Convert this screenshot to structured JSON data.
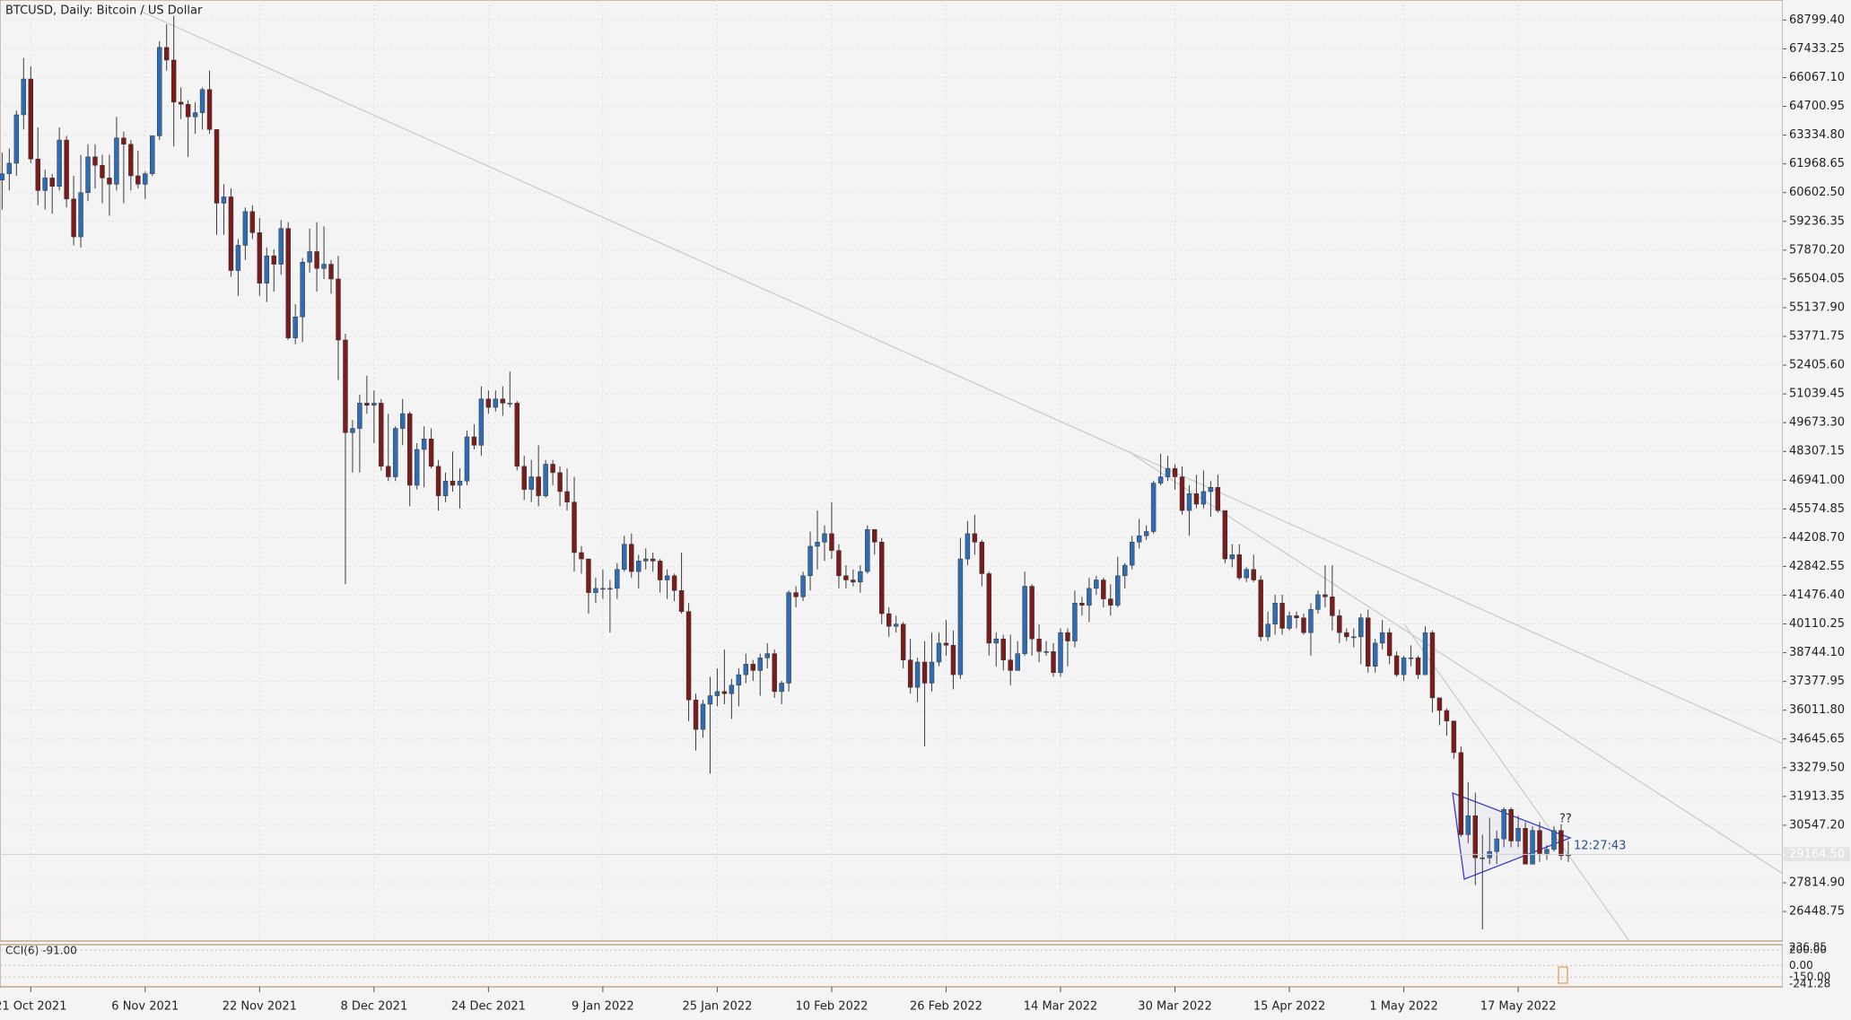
{
  "chart_data": {
    "type": "candlestick",
    "title": "BTCUSD, Daily:  Bitcoin / US Dollar",
    "up_color": "#2e6db4",
    "down_color": "#7a1c1c",
    "wick_color": "#3c3c3c",
    "grid": true,
    "xlim": [
      -0.3,
      249
    ],
    "xticks": [
      {
        "value": 4,
        "label": "21 Oct 2021"
      },
      {
        "value": 20,
        "label": "6 Nov 2021"
      },
      {
        "value": 36,
        "label": "22 Nov 2021"
      },
      {
        "value": 52,
        "label": "8 Dec 2021"
      },
      {
        "value": 68,
        "label": "24 Dec 2021"
      },
      {
        "value": 84,
        "label": "9 Jan 2022"
      },
      {
        "value": 100,
        "label": "25 Jan 2022"
      },
      {
        "value": 116,
        "label": "10 Feb 2022"
      },
      {
        "value": 132,
        "label": "26 Feb 2022"
      },
      {
        "value": 148,
        "label": "14 Mar 2022"
      },
      {
        "value": 164,
        "label": "30 Mar 2022"
      },
      {
        "value": 180,
        "label": "15 Apr 2022"
      },
      {
        "value": 196,
        "label": "1 May 2022"
      },
      {
        "value": 212,
        "label": "17 May 2022"
      }
    ],
    "ylim": [
      25046,
      69753
    ],
    "yticks": [
      {
        "value": 68799.4,
        "label": "68799.40"
      },
      {
        "value": 67433.25,
        "label": "67433.25"
      },
      {
        "value": 66067.1,
        "label": "66067.10"
      },
      {
        "value": 64700.95,
        "label": "64700.95"
      },
      {
        "value": 63334.8,
        "label": "63334.80"
      },
      {
        "value": 61968.65,
        "label": "61968.65"
      },
      {
        "value": 60602.5,
        "label": "60602.50"
      },
      {
        "value": 59236.35,
        "label": "59236.35"
      },
      {
        "value": 57870.2,
        "label": "57870.20"
      },
      {
        "value": 56504.05,
        "label": "56504.05"
      },
      {
        "value": 55137.9,
        "label": "55137.90"
      },
      {
        "value": 53771.75,
        "label": "53771.75"
      },
      {
        "value": 52405.6,
        "label": "52405.60"
      },
      {
        "value": 51039.45,
        "label": "51039.45"
      },
      {
        "value": 49673.3,
        "label": "49673.30"
      },
      {
        "value": 48307.15,
        "label": "48307.15"
      },
      {
        "value": 46941,
        "label": "46941.00"
      },
      {
        "value": 45574.85,
        "label": "45574.85"
      },
      {
        "value": 44208.7,
        "label": "44208.70"
      },
      {
        "value": 42842.55,
        "label": "42842.55"
      },
      {
        "value": 41476.4,
        "label": "41476.40"
      },
      {
        "value": 40110.25,
        "label": "40110.25"
      },
      {
        "value": 38744.1,
        "label": "38744.10"
      },
      {
        "value": 37377.95,
        "label": "37377.95"
      },
      {
        "value": 36011.8,
        "label": "36011.80"
      },
      {
        "value": 34645.65,
        "label": "34645.65"
      },
      {
        "value": 33279.5,
        "label": "33279.50"
      },
      {
        "value": 31913.35,
        "label": "31913.35"
      },
      {
        "value": 30547.2,
        "label": "30547.20"
      },
      {
        "value": 27814.9,
        "label": "27814.90"
      },
      {
        "value": 26448.75,
        "label": "26448.75"
      }
    ],
    "last_price": {
      "value": 29164.5,
      "label": "29164.50"
    },
    "annotations": [
      "??",
      "12:27:43"
    ],
    "open": [
      61200,
      61500,
      62000,
      64300,
      66000,
      62200,
      60700,
      61300,
      60900,
      63100,
      60300,
      58500,
      60600,
      62300,
      61900,
      61300,
      61000,
      63200,
      62900,
      61400,
      61000,
      61500,
      63300,
      67500,
      66900,
      64900,
      64800,
      64200,
      64400,
      65500,
      63600,
      60100,
      60400,
      56900,
      58100,
      59700,
      58700,
      56300,
      57600,
      57200,
      58900,
      53700,
      54700,
      57300,
      57800,
      57000,
      57200,
      56500,
      53600,
      49200,
      49400,
      50600,
      50500,
      50600,
      47600,
      47100,
      49400,
      50100,
      46700,
      48400,
      48900,
      47600,
      46200,
      46900,
      46700,
      46900,
      49000,
      48600,
      50800,
      50400,
      50800,
      50600,
      50600,
      47600,
      46500,
      47100,
      46200,
      47700,
      47300,
      46400,
      45900,
      43500,
      43200,
      41600,
      41800,
      41800,
      41800,
      42700,
      43900,
      42600,
      43100,
      43200,
      43100,
      42200,
      42400,
      41700,
      40700,
      36500,
      35100,
      36300,
      36700,
      36900,
      36800,
      37200,
      37700,
      38200,
      37900,
      38500,
      38700,
      36900,
      37300,
      41600,
      41400,
      42400,
      43800,
      44000,
      44400,
      43600,
      42400,
      42200,
      42100,
      42600,
      44600,
      44000,
      40600,
      40000,
      40100,
      38400,
      37100,
      38300,
      37300,
      38300,
      39200,
      39100,
      37700,
      43200,
      44400,
      44000,
      42500,
      39200,
      39400,
      38400,
      37900,
      38700,
      41900,
      39400,
      38800,
      38800,
      37800,
      39700,
      39300,
      41100,
      41000,
      41800,
      42200,
      41300,
      41000,
      42400,
      42900,
      44000,
      44300,
      44500,
      46800,
      47100,
      47500,
      47100,
      45500,
      46300,
      45800,
      46400,
      46600,
      45500,
      43200,
      43400,
      42300,
      42700,
      42200,
      39500,
      40100,
      41100,
      39900,
      40500,
      40400,
      39700,
      40800,
      41500,
      41400,
      40500,
      39700,
      39500,
      39500,
      40400,
      38100,
      39200,
      39700,
      38600,
      37700,
      38500,
      38500,
      37700,
      39700,
      36600,
      36000,
      35500,
      34000,
      30100,
      31000,
      29000,
      29000,
      29300,
      29900,
      31300,
      29800,
      30400,
      28700,
      30300,
      29200,
      29400,
      30300,
      29100
    ],
    "high": [
      62500,
      62700,
      64500,
      67000,
      66600,
      63700,
      61700,
      61500,
      63700,
      63300,
      61400,
      62400,
      62900,
      62900,
      62400,
      62400,
      64200,
      63500,
      63100,
      62600,
      61600,
      63300,
      67800,
      68600,
      69000,
      65600,
      65000,
      64900,
      65600,
      66400,
      63600,
      61000,
      60800,
      58400,
      59900,
      60000,
      59400,
      58000,
      57900,
      59300,
      59200,
      55300,
      57500,
      58900,
      59200,
      59000,
      57400,
      57600,
      53900,
      49800,
      51000,
      51900,
      51200,
      50800,
      50100,
      49500,
      50800,
      50200,
      48700,
      49500,
      49400,
      47900,
      47300,
      48300,
      47500,
      49300,
      49600,
      51400,
      51200,
      51200,
      51400,
      52100,
      50700,
      48100,
      47900,
      48600,
      47900,
      47900,
      47600,
      47500,
      47100,
      43800,
      43200,
      42300,
      42700,
      42200,
      43000,
      44300,
      44400,
      43400,
      43700,
      43500,
      43200,
      42700,
      42500,
      43500,
      41100,
      36800,
      36500,
      37600,
      38000,
      38900,
      37500,
      38000,
      38700,
      38400,
      38700,
      39200,
      38900,
      37400,
      41700,
      41900,
      42600,
      44500,
      45500,
      44800,
      45900,
      43900,
      42900,
      42700,
      42900,
      44800,
      44600,
      44200,
      40900,
      40500,
      40200,
      39400,
      38500,
      39300,
      39700,
      39700,
      40300,
      39800,
      44200,
      45000,
      45300,
      44100,
      42600,
      39700,
      39600,
      39600,
      39300,
      42600,
      42000,
      40100,
      39300,
      39200,
      39900,
      39900,
      41700,
      41400,
      42300,
      42400,
      42300,
      42000,
      43300,
      43000,
      44300,
      45100,
      44800,
      46900,
      48200,
      48100,
      47700,
      47600,
      46700,
      47200,
      47400,
      46900,
      47200,
      45500,
      43900,
      43900,
      42800,
      43400,
      42400,
      40700,
      41500,
      41500,
      40700,
      40700,
      40600,
      41100,
      41700,
      42900,
      42900,
      40800,
      39900,
      39900,
      40600,
      40800,
      39400,
      40300,
      39900,
      38800,
      38600,
      39100,
      38600,
      40000,
      39800,
      36600,
      36100,
      35500,
      34300,
      32600,
      32100,
      30100,
      30900,
      30300,
      31400,
      31400,
      31000,
      30700,
      30500,
      30700,
      29600,
      30500,
      30600,
      29800
    ],
    "low": [
      59800,
      60700,
      61400,
      63600,
      62000,
      60000,
      59800,
      59600,
      60700,
      59900,
      58100,
      58000,
      60200,
      60800,
      60100,
      59500,
      60700,
      60100,
      60700,
      60800,
      60300,
      61400,
      63100,
      66400,
      62800,
      64100,
      62300,
      63400,
      63600,
      63400,
      58600,
      58600,
      56600,
      55700,
      57400,
      58400,
      55700,
      55400,
      55900,
      56700,
      53600,
      53400,
      53500,
      56800,
      55900,
      56500,
      55800,
      51700,
      42000,
      47300,
      47300,
      50100,
      48700,
      47400,
      46900,
      46900,
      48600,
      45700,
      46500,
      46600,
      47500,
      45500,
      45900,
      46400,
      45600,
      46700,
      48400,
      48100,
      50100,
      50200,
      50000,
      50400,
      47400,
      46000,
      45900,
      45700,
      46100,
      46700,
      45700,
      45500,
      42600,
      42500,
      40600,
      41100,
      41300,
      39700,
      41300,
      42600,
      42300,
      41800,
      42700,
      42600,
      41600,
      41300,
      41200,
      40600,
      35500,
      34100,
      34700,
      33000,
      36200,
      36300,
      35600,
      36200,
      37300,
      37400,
      36700,
      38000,
      36600,
      36300,
      36900,
      40900,
      41200,
      41700,
      42700,
      43100,
      43200,
      41800,
      41800,
      41900,
      41600,
      42500,
      43400,
      40100,
      39500,
      39700,
      38000,
      36800,
      36400,
      34300,
      36900,
      38100,
      38600,
      37000,
      37500,
      42900,
      43400,
      41900,
      38600,
      38100,
      37900,
      37200,
      37900,
      38600,
      38600,
      38300,
      38600,
      37600,
      37600,
      38100,
      39000,
      40500,
      40200,
      41500,
      40900,
      40500,
      40900,
      41800,
      42700,
      43700,
      44100,
      44400,
      46700,
      46900,
      46500,
      45300,
      44300,
      45600,
      45600,
      45200,
      45400,
      43000,
      42800,
      42200,
      42100,
      42100,
      39300,
      39300,
      39600,
      39600,
      39800,
      39900,
      39600,
      38600,
      40600,
      40900,
      39800,
      39200,
      39300,
      39000,
      38200,
      37800,
      37800,
      38900,
      38200,
      37600,
      37400,
      38100,
      37500,
      37700,
      35900,
      35300,
      34800,
      33700,
      30000,
      29700,
      27700,
      25600,
      28700,
      28700,
      29500,
      29500,
      29500,
      28700,
      28700,
      28800,
      28900,
      29300,
      28900,
      28800
    ],
    "close": [
      61500,
      62000,
      64300,
      66000,
      62200,
      60700,
      61300,
      60900,
      63100,
      60300,
      58500,
      60600,
      62300,
      61900,
      61300,
      61000,
      63200,
      62900,
      61400,
      61000,
      61500,
      63300,
      67500,
      66900,
      64900,
      64800,
      64200,
      64400,
      65500,
      63600,
      60100,
      60400,
      56900,
      58100,
      59700,
      58700,
      56300,
      57600,
      57200,
      58900,
      53700,
      54700,
      57300,
      57800,
      57000,
      57200,
      56500,
      53600,
      49200,
      49400,
      50600,
      50500,
      50600,
      47600,
      47100,
      49400,
      50100,
      46700,
      48400,
      48900,
      47600,
      46200,
      46900,
      46700,
      46900,
      49000,
      48600,
      50800,
      50400,
      50800,
      50600,
      50600,
      47600,
      46500,
      47100,
      46200,
      47700,
      47300,
      46400,
      45900,
      43500,
      43200,
      41600,
      41800,
      41800,
      41800,
      42700,
      43900,
      42600,
      43100,
      43200,
      43100,
      42200,
      42400,
      41700,
      40700,
      36500,
      35100,
      36300,
      36700,
      36900,
      36800,
      37200,
      37700,
      38200,
      37900,
      38500,
      38700,
      36900,
      37300,
      41600,
      41400,
      42400,
      43800,
      44000,
      44400,
      43600,
      42400,
      42200,
      42100,
      42600,
      44600,
      44000,
      40600,
      40000,
      40100,
      38400,
      37100,
      38300,
      37300,
      38300,
      39200,
      39100,
      37700,
      43200,
      44400,
      44000,
      42500,
      39200,
      39400,
      38400,
      37900,
      38700,
      41900,
      39400,
      38800,
      38800,
      37800,
      39700,
      39300,
      41100,
      41000,
      41800,
      42200,
      41300,
      41000,
      42400,
      42900,
      44000,
      44300,
      44500,
      46800,
      47100,
      47500,
      47100,
      45500,
      46300,
      45800,
      46400,
      46600,
      45500,
      43200,
      43400,
      42300,
      42700,
      42200,
      39500,
      40100,
      41100,
      39900,
      40500,
      40400,
      39700,
      40800,
      41500,
      41400,
      40500,
      39700,
      39500,
      39500,
      40400,
      38100,
      39200,
      39700,
      38600,
      37700,
      38500,
      38500,
      37700,
      39700,
      36600,
      36000,
      35500,
      34000,
      30100,
      31000,
      29000,
      29000,
      29300,
      29900,
      31300,
      29800,
      30400,
      28700,
      30300,
      29200,
      29400,
      30300,
      29100,
      29164.5
    ],
    "indicator": {
      "label": "CCI(6) -91.00",
      "ylim": [
        -241.28,
        236.85
      ],
      "yticks": [
        {
          "value": 200,
          "label": "200.00"
        },
        {
          "value": 0,
          "label": "0.00"
        },
        {
          "value": -150,
          "label": "-150.00"
        }
      ]
    }
  }
}
